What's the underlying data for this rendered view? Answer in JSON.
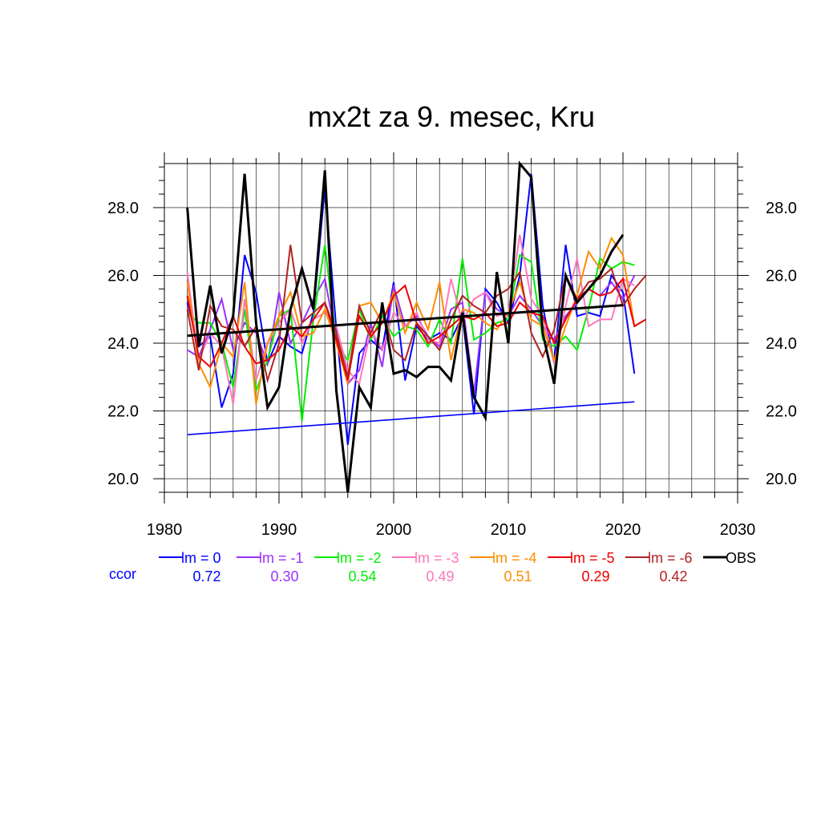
{
  "chart_data": {
    "type": "line",
    "title": "mx2t za 9. mesec, Kru",
    "xlabel": "",
    "ylabel": "",
    "xlim": [
      1980,
      2030
    ],
    "ylim": [
      19.6,
      29.3
    ],
    "x_ticks": [
      "1980",
      "1990",
      "2000",
      "2010",
      "2020",
      "2030"
    ],
    "y_ticks": [
      "20.0",
      "22.0",
      "24.0",
      "26.0",
      "28.0"
    ],
    "grid": true,
    "ccor_label": "ccor",
    "series": [
      {
        "name": "lm = 0",
        "color": "#0000ff",
        "ccor": "0.72",
        "x": [
          1982,
          1983,
          1984,
          1985,
          1986,
          1987,
          1988,
          1989,
          1990,
          1991,
          1992,
          1993,
          1994,
          1995,
          1996,
          1997,
          1998,
          1999,
          2000,
          2001,
          2002,
          2003,
          2004,
          2005,
          2006,
          2007,
          2008,
          2009,
          2010,
          2011,
          2012,
          2013,
          2014,
          2015,
          2016,
          2017,
          2018,
          2019,
          2020,
          2021
        ],
        "y": [
          25.2,
          23.9,
          24.2,
          22.1,
          23.1,
          26.6,
          25.5,
          23.4,
          24.2,
          23.9,
          23.7,
          24.9,
          28.6,
          24.4,
          21.0,
          23.7,
          24.1,
          23.8,
          25.8,
          22.9,
          24.5,
          24.1,
          24.3,
          24.1,
          24.8,
          21.9,
          25.6,
          25.2,
          24.6,
          26.0,
          29.0,
          25.1,
          23.4,
          26.9,
          24.8,
          24.9,
          24.8,
          26.0,
          25.5,
          23.1
        ]
      },
      {
        "name": "lm = -1",
        "color": "#9b30ff",
        "ccor": "0.30",
        "x": [
          1982,
          1983,
          1984,
          1985,
          1986,
          1987,
          1988,
          1989,
          1990,
          1991,
          1992,
          1993,
          1994,
          1995,
          1996,
          1997,
          1998,
          1999,
          2000,
          2001,
          2002,
          2003,
          2004,
          2005,
          2006,
          2007,
          2008,
          2009,
          2010,
          2011,
          2012,
          2013,
          2014,
          2015,
          2016,
          2017,
          2018,
          2019,
          2020,
          2021
        ],
        "y": [
          23.8,
          23.6,
          24.4,
          25.3,
          23.8,
          24.6,
          24.3,
          23.4,
          25.5,
          24.0,
          24.6,
          25.3,
          25.9,
          24.1,
          22.8,
          23.2,
          24.6,
          23.3,
          25.7,
          24.5,
          24.8,
          24.2,
          23.9,
          25.0,
          25.2,
          22.5,
          25.5,
          25.0,
          24.8,
          25.4,
          25.0,
          24.5,
          24.1,
          24.8,
          25.2,
          25.6,
          25.4,
          25.8,
          25.3,
          26.0
        ]
      },
      {
        "name": "lm = -2",
        "color": "#00ee00",
        "ccor": "0.54",
        "x": [
          1982,
          1983,
          1984,
          1985,
          1986,
          1987,
          1988,
          1989,
          1990,
          1991,
          1992,
          1993,
          1994,
          1995,
          1996,
          1997,
          1998,
          1999,
          2000,
          2001,
          2002,
          2003,
          2004,
          2005,
          2006,
          2007,
          2008,
          2009,
          2010,
          2011,
          2012,
          2013,
          2014,
          2015,
          2016,
          2017,
          2018,
          2019,
          2020,
          2021
        ],
        "y": [
          24.9,
          24.6,
          24.6,
          24.0,
          22.7,
          25.0,
          22.6,
          23.5,
          24.8,
          25.0,
          21.7,
          24.7,
          26.9,
          24.0,
          23.5,
          25.0,
          24.1,
          24.8,
          24.2,
          24.5,
          24.4,
          23.9,
          24.7,
          24.0,
          26.5,
          24.1,
          24.3,
          24.6,
          24.7,
          26.6,
          26.4,
          24.1,
          23.9,
          24.2,
          23.8,
          25.0,
          26.5,
          26.2,
          26.4,
          26.3
        ]
      },
      {
        "name": "lm = -3",
        "color": "#ff77bb",
        "ccor": "0.49",
        "x": [
          1982,
          1983,
          1984,
          1985,
          1986,
          1987,
          1988,
          1989,
          1990,
          1991,
          1992,
          1993,
          1994,
          1995,
          1996,
          1997,
          1998,
          1999,
          2000,
          2001,
          2002,
          2003,
          2004,
          2005,
          2006,
          2007,
          2008,
          2009,
          2010,
          2011,
          2012,
          2013,
          2014,
          2015,
          2016,
          2017,
          2018,
          2019,
          2020,
          2021
        ],
        "y": [
          26.1,
          23.5,
          24.3,
          23.9,
          22.2,
          25.3,
          22.9,
          24.0,
          24.6,
          25.0,
          24.0,
          24.7,
          24.9,
          24.5,
          23.2,
          22.8,
          24.4,
          23.8,
          24.9,
          24.5,
          24.9,
          24.1,
          24.0,
          25.9,
          24.6,
          25.3,
          25.5,
          24.8,
          24.9,
          27.2,
          25.3,
          24.8,
          23.4,
          25.1,
          26.5,
          24.5,
          24.7,
          24.7,
          25.9,
          25.7
        ]
      },
      {
        "name": "lm = -4",
        "color": "#ff8c00",
        "ccor": "0.51",
        "x": [
          1982,
          1983,
          1984,
          1985,
          1986,
          1987,
          1988,
          1989,
          1990,
          1991,
          1992,
          1993,
          1994,
          1995,
          1996,
          1997,
          1998,
          1999,
          2000,
          2001,
          2002,
          2003,
          2004,
          2005,
          2006,
          2007,
          2008,
          2009,
          2010,
          2011,
          2012,
          2013,
          2014,
          2015,
          2016,
          2017,
          2018,
          2019,
          2020,
          2021
        ],
        "y": [
          25.8,
          23.4,
          22.7,
          24.0,
          23.6,
          25.8,
          22.2,
          24.0,
          24.8,
          25.5,
          24.2,
          24.3,
          25.0,
          24.0,
          22.8,
          25.1,
          25.2,
          24.6,
          25.5,
          24.3,
          25.2,
          24.4,
          25.8,
          23.5,
          25.0,
          24.9,
          24.6,
          24.4,
          24.9,
          25.8,
          24.7,
          24.5,
          23.5,
          24.5,
          25.4,
          26.7,
          26.2,
          27.1,
          26.6,
          24.5
        ]
      },
      {
        "name": "lm = -5",
        "color": "#ee0000",
        "ccor": "0.29",
        "x": [
          1982,
          1983,
          1984,
          1985,
          1986,
          1987,
          1988,
          1989,
          1990,
          1991,
          1992,
          1993,
          1994,
          1995,
          1996,
          1997,
          1998,
          1999,
          2000,
          2001,
          2002,
          2003,
          2004,
          2005,
          2006,
          2007,
          2008,
          2009,
          2010,
          2011,
          2012,
          2013,
          2014,
          2015,
          2016,
          2017,
          2018,
          2019,
          2020,
          2021,
          2022
        ],
        "y": [
          25.4,
          23.6,
          23.3,
          24.0,
          24.8,
          23.9,
          23.4,
          23.5,
          23.8,
          24.5,
          24.2,
          24.7,
          25.2,
          24.1,
          22.9,
          24.8,
          24.2,
          24.6,
          25.4,
          25.7,
          24.6,
          24.0,
          24.2,
          24.5,
          24.8,
          24.7,
          24.9,
          24.5,
          24.6,
          25.2,
          24.9,
          24.8,
          24.0,
          24.7,
          25.3,
          25.6,
          25.4,
          25.5,
          25.9,
          24.5,
          24.7
        ]
      },
      {
        "name": "lm = -6",
        "color": "#b22222",
        "ccor": "0.42",
        "x": [
          1982,
          1983,
          1984,
          1985,
          1986,
          1987,
          1988,
          1989,
          1990,
          1991,
          1992,
          1993,
          1994,
          1995,
          1996,
          1997,
          1998,
          1999,
          2000,
          2001,
          2002,
          2003,
          2004,
          2005,
          2006,
          2007,
          2008,
          2009,
          2010,
          2011,
          2012,
          2013,
          2014,
          2015,
          2016,
          2017,
          2018,
          2019,
          2020,
          2021,
          2022
        ],
        "y": [
          25.0,
          23.2,
          25.1,
          24.5,
          24.4,
          23.9,
          24.5,
          22.9,
          24.0,
          26.9,
          24.6,
          24.9,
          25.2,
          24.3,
          23.0,
          25.1,
          24.3,
          25.0,
          23.8,
          23.5,
          24.6,
          24.2,
          23.8,
          24.7,
          25.4,
          25.1,
          24.9,
          25.4,
          25.6,
          26.1,
          24.3,
          23.6,
          24.4,
          26.0,
          25.3,
          25.8,
          25.9,
          26.2,
          25.1,
          25.6,
          26.0
        ]
      },
      {
        "name": "OBS",
        "color": "#000000",
        "ccor": "",
        "x": [
          1982,
          1983,
          1984,
          1985,
          1986,
          1987,
          1988,
          1989,
          1990,
          1991,
          1992,
          1993,
          1994,
          1995,
          1996,
          1997,
          1998,
          1999,
          2000,
          2001,
          2002,
          2003,
          2004,
          2005,
          2006,
          2007,
          2008,
          2009,
          2010,
          2011,
          2012,
          2013,
          2014,
          2015,
          2016,
          2017,
          2018,
          2019,
          2020
        ],
        "y": [
          28.0,
          23.9,
          25.7,
          23.7,
          24.8,
          29.0,
          24.6,
          22.1,
          22.7,
          25.0,
          26.2,
          25.0,
          29.1,
          22.6,
          19.6,
          22.7,
          22.1,
          25.2,
          23.1,
          23.2,
          23.0,
          23.3,
          23.3,
          22.9,
          24.9,
          22.4,
          21.8,
          26.1,
          24.0,
          29.3,
          28.9,
          24.3,
          22.8,
          26.0,
          25.2,
          25.6,
          26.0,
          26.7,
          27.2
        ]
      }
    ],
    "trend_lines": [
      {
        "color": "#0000ff",
        "x": [
          1982,
          2021
        ],
        "y": [
          21.3,
          22.27
        ]
      },
      {
        "color": "#000000",
        "x": [
          1982,
          2020
        ],
        "y": [
          24.22,
          25.12
        ]
      }
    ]
  }
}
